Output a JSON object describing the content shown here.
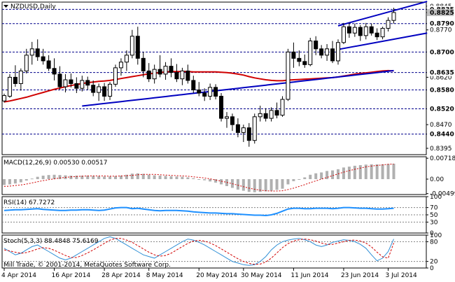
{
  "colors": {
    "background": "#ffffff",
    "frame": "#000000",
    "candle": "#000000",
    "sma_fast": "#d00000",
    "sma_slow": "#0000c0",
    "channel": "#0000c0",
    "level_line": "#00008b",
    "last_price_label_bg": "#c0c0c0",
    "macd_hist": "#b0b0b0",
    "macd_signal": "#d00000",
    "rsi_line": "#1e90ff",
    "stoch_main": "#2f8fd6",
    "stoch_signal": "#d00000",
    "osc_level": "#808080"
  },
  "chart_data": [
    {
      "type": "candlestick",
      "title": "NZDUSD,Daily",
      "ylim": [
        0.8375,
        0.8858
      ],
      "y_ticks": [
        "0.8845",
        "0.8835",
        "0.8825",
        "0.8790",
        "0.8770",
        "0.8700",
        "0.8635",
        "0.8620",
        "0.8580",
        "0.8520",
        "0.8470",
        "0.8440",
        "0.8395"
      ],
      "level_lines": [
        0.8835,
        0.879,
        0.87,
        0.8635,
        0.858,
        0.852,
        0.844
      ],
      "level_labels": [
        "0.8835",
        "0.8790",
        "0.8700",
        "0.8635",
        "0.8580",
        "0.8520",
        "0.8440"
      ],
      "last_price": "0.8825",
      "x_labels": [
        "4 Apr 2014",
        "16 Apr 2014",
        "28 Apr 2014",
        "8 May 2014",
        "20 May 2014",
        "30 May 2014",
        "11 Jun 2014",
        "23 Jun 2014",
        "3 Jul 2014"
      ],
      "x_label_bar_index": [
        0,
        9,
        18,
        26,
        35,
        43,
        52,
        61,
        69
      ],
      "ohlc": [
        [
          0.8545,
          0.8568,
          0.854,
          0.8562
        ],
        [
          0.856,
          0.863,
          0.8555,
          0.862
        ],
        [
          0.862,
          0.8658,
          0.859,
          0.86
        ],
        [
          0.86,
          0.8648,
          0.8578,
          0.864
        ],
        [
          0.864,
          0.871,
          0.8632,
          0.869
        ],
        [
          0.869,
          0.8732,
          0.866,
          0.871
        ],
        [
          0.871,
          0.874,
          0.8672,
          0.8685
        ],
        [
          0.8685,
          0.871,
          0.866,
          0.8672
        ],
        [
          0.8672,
          0.869,
          0.864,
          0.8648
        ],
        [
          0.8648,
          0.868,
          0.861,
          0.863
        ],
        [
          0.863,
          0.8655,
          0.858,
          0.859
        ],
        [
          0.859,
          0.863,
          0.8572,
          0.8612
        ],
        [
          0.8612,
          0.8632,
          0.8588,
          0.86
        ],
        [
          0.86,
          0.862,
          0.857,
          0.8585
        ],
        [
          0.8585,
          0.8625,
          0.8575,
          0.861
        ],
        [
          0.861,
          0.8622,
          0.858,
          0.8595
        ],
        [
          0.8595,
          0.861,
          0.856,
          0.8572
        ],
        [
          0.8572,
          0.86,
          0.8545,
          0.859
        ],
        [
          0.859,
          0.8602,
          0.8545,
          0.856
        ],
        [
          0.856,
          0.8605,
          0.8548,
          0.8598
        ],
        [
          0.8598,
          0.866,
          0.859,
          0.865
        ],
        [
          0.865,
          0.868,
          0.8625,
          0.8668
        ],
        [
          0.8668,
          0.8705,
          0.864,
          0.869
        ],
        [
          0.869,
          0.877,
          0.868,
          0.875
        ],
        [
          0.875,
          0.878,
          0.866,
          0.868
        ],
        [
          0.868,
          0.87,
          0.862,
          0.864
        ],
        [
          0.864,
          0.8665,
          0.8605,
          0.8615
        ],
        [
          0.8615,
          0.866,
          0.86,
          0.8645
        ],
        [
          0.8645,
          0.869,
          0.862,
          0.863
        ],
        [
          0.863,
          0.8668,
          0.8612,
          0.8655
        ],
        [
          0.8655,
          0.868,
          0.862,
          0.8635
        ],
        [
          0.8635,
          0.8662,
          0.8605,
          0.8615
        ],
        [
          0.8615,
          0.865,
          0.8595,
          0.864
        ],
        [
          0.864,
          0.866,
          0.86,
          0.861
        ],
        [
          0.861,
          0.8625,
          0.857,
          0.858
        ],
        [
          0.858,
          0.8605,
          0.856,
          0.857
        ],
        [
          0.857,
          0.8585,
          0.8545,
          0.856
        ],
        [
          0.856,
          0.86,
          0.8548,
          0.8588
        ],
        [
          0.8588,
          0.8598,
          0.855,
          0.856
        ],
        [
          0.856,
          0.857,
          0.848,
          0.849
        ],
        [
          0.849,
          0.851,
          0.846,
          0.8495
        ],
        [
          0.8495,
          0.8505,
          0.845,
          0.847
        ],
        [
          0.847,
          0.849,
          0.843,
          0.8445
        ],
        [
          0.8445,
          0.847,
          0.8415,
          0.846
        ],
        [
          0.846,
          0.8475,
          0.84,
          0.842
        ],
        [
          0.842,
          0.8505,
          0.841,
          0.8495
        ],
        [
          0.8495,
          0.853,
          0.848,
          0.8505
        ],
        [
          0.8505,
          0.8522,
          0.848,
          0.849
        ],
        [
          0.849,
          0.8525,
          0.848,
          0.8515
        ],
        [
          0.8515,
          0.854,
          0.849,
          0.85
        ],
        [
          0.85,
          0.856,
          0.8495,
          0.855
        ],
        [
          0.855,
          0.871,
          0.8545,
          0.87
        ],
        [
          0.87,
          0.873,
          0.865,
          0.868
        ],
        [
          0.868,
          0.8705,
          0.8655,
          0.867
        ],
        [
          0.867,
          0.8692,
          0.865,
          0.866
        ],
        [
          0.866,
          0.8745,
          0.8655,
          0.8735
        ],
        [
          0.8735,
          0.875,
          0.869,
          0.871
        ],
        [
          0.871,
          0.8722,
          0.868,
          0.869
        ],
        [
          0.869,
          0.8725,
          0.8672,
          0.871
        ],
        [
          0.871,
          0.8735,
          0.8665,
          0.8672
        ],
        [
          0.8672,
          0.874,
          0.866,
          0.873
        ],
        [
          0.873,
          0.8792,
          0.8725,
          0.878
        ],
        [
          0.878,
          0.8792,
          0.8745,
          0.876
        ],
        [
          0.876,
          0.879,
          0.8748,
          0.8778
        ],
        [
          0.8778,
          0.8785,
          0.8735,
          0.8752
        ],
        [
          0.8752,
          0.8792,
          0.874,
          0.878
        ],
        [
          0.878,
          0.879,
          0.8752,
          0.876
        ],
        [
          0.876,
          0.8775,
          0.8738,
          0.8748
        ],
        [
          0.8748,
          0.878,
          0.874,
          0.8775
        ],
        [
          0.8775,
          0.881,
          0.8765,
          0.88
        ],
        [
          0.88,
          0.884,
          0.879,
          0.8825
        ]
      ],
      "sma_fast": [
        0.8542,
        0.8545,
        0.8549,
        0.8553,
        0.8557,
        0.8562,
        0.8567,
        0.8572,
        0.8577,
        0.8582,
        0.8586,
        0.859,
        0.8594,
        0.8597,
        0.86,
        0.8603,
        0.8605,
        0.8607,
        0.8608,
        0.861,
        0.8613,
        0.8616,
        0.8619,
        0.8622,
        0.8625,
        0.8628,
        0.8631,
        0.8633,
        0.8635,
        0.8637,
        0.8638,
        0.8638,
        0.8638,
        0.8638,
        0.8637,
        0.8637,
        0.8637,
        0.8637,
        0.8637,
        0.8636,
        0.8635,
        0.8633,
        0.863,
        0.8627,
        0.8622,
        0.8618,
        0.8615,
        0.8612,
        0.861,
        0.8609,
        0.8609,
        0.8611,
        0.8612,
        0.8613,
        0.8614,
        0.8615,
        0.8616,
        0.8617,
        0.8618,
        0.8619,
        0.8621,
        0.8624,
        0.8627,
        0.863,
        0.8632,
        0.8634,
        0.8636,
        0.8638,
        0.864,
        0.8641,
        0.864
      ],
      "sma_slow_visible_from_bar": 14,
      "sma_slow": [
        0.85,
        0.8502,
        0.8505,
        0.8507,
        0.8509,
        0.8511,
        0.8513,
        0.8515,
        0.8517,
        0.8519,
        0.8521,
        0.8523,
        0.8525,
        0.8527,
        0.8529,
        0.8531,
        0.8533,
        0.8535,
        0.8537,
        0.8539,
        0.8541,
        0.8543,
        0.8545,
        0.8547,
        0.8549,
        0.8551,
        0.8553,
        0.8555,
        0.8557,
        0.8559,
        0.8561,
        0.8563,
        0.8565,
        0.8567,
        0.8569,
        0.8571,
        0.8573,
        0.8575,
        0.8577,
        0.8579,
        0.8581,
        0.8583,
        0.8585,
        0.8587,
        0.8589,
        0.8591,
        0.8593,
        0.8595,
        0.8597,
        0.8599,
        0.8601,
        0.8603,
        0.8605,
        0.8607,
        0.8609,
        0.8611,
        0.8613,
        0.8615,
        0.8617,
        0.8619,
        0.8621,
        0.8623,
        0.8625,
        0.8627,
        0.8629,
        0.8631,
        0.8633,
        0.8635,
        0.8637,
        0.8639,
        0.8641
      ],
      "channel": [
        {
          "from_bar": 60,
          "from_price": 0.8783,
          "to_bar": 76,
          "to_price": 0.886
        },
        {
          "from_bar": 60,
          "from_price": 0.8708,
          "to_bar": 76,
          "to_price": 0.876
        }
      ]
    },
    {
      "type": "bar",
      "title": "MACD(12,26,9) 0.00530 0.00517",
      "ylim": [
        -0.0053,
        0.0077
      ],
      "y_ticks": [
        "0.00718",
        "0.00",
        "-0.00499"
      ],
      "histogram": [
        -0.002,
        -0.0018,
        -0.0015,
        -0.0011,
        -0.0005,
        0.0002,
        0.0008,
        0.0012,
        0.0014,
        0.0015,
        0.0014,
        0.0013,
        0.0012,
        0.0012,
        0.0012,
        0.0012,
        0.0011,
        0.001,
        0.0009,
        0.0009,
        0.001,
        0.0012,
        0.0015,
        0.0019,
        0.002,
        0.0018,
        0.0015,
        0.0013,
        0.0012,
        0.0011,
        0.001,
        0.0009,
        0.0008,
        0.0006,
        0.0003,
        0.0,
        -0.0004,
        -0.0008,
        -0.0012,
        -0.0018,
        -0.0024,
        -0.003,
        -0.0036,
        -0.004,
        -0.0044,
        -0.0045,
        -0.0044,
        -0.0042,
        -0.004,
        -0.0037,
        -0.0033,
        -0.0018,
        -0.0007,
        0.0,
        0.0006,
        0.0015,
        0.002,
        0.0023,
        0.0028,
        0.003,
        0.0034,
        0.004,
        0.0043,
        0.0046,
        0.0048,
        0.005,
        0.0051,
        0.0051,
        0.0051,
        0.0052,
        0.0053
      ],
      "signal": [
        -0.0025,
        -0.0024,
        -0.0022,
        -0.002,
        -0.0017,
        -0.0013,
        -0.0009,
        -0.0005,
        -0.0002,
        0.0001,
        0.0004,
        0.0006,
        0.0008,
        0.0009,
        0.001,
        0.0011,
        0.0011,
        0.0011,
        0.0011,
        0.001,
        0.001,
        0.0011,
        0.0012,
        0.0013,
        0.0015,
        0.0016,
        0.0016,
        0.0016,
        0.0015,
        0.0014,
        0.0013,
        0.0012,
        0.0011,
        0.001,
        0.0008,
        0.0006,
        0.0004,
        0.0001,
        -0.0003,
        -0.0007,
        -0.0011,
        -0.0016,
        -0.0021,
        -0.0026,
        -0.0031,
        -0.0035,
        -0.0038,
        -0.004,
        -0.0041,
        -0.0041,
        -0.004,
        -0.0036,
        -0.0031,
        -0.0025,
        -0.0019,
        -0.0012,
        -0.0006,
        0.0,
        0.0006,
        0.0012,
        0.0018,
        0.0024,
        0.0029,
        0.0034,
        0.0038,
        0.0042,
        0.0045,
        0.0047,
        0.0049,
        0.0051,
        0.0052
      ]
    },
    {
      "type": "line",
      "title": "RSI(14) 67.7272",
      "ylim": [
        0,
        100
      ],
      "y_ticks": [
        "100",
        "70",
        "50",
        "30",
        "0"
      ],
      "levels": [
        70,
        50,
        30
      ],
      "values": [
        62,
        63,
        64,
        64,
        65,
        66,
        67,
        65,
        64,
        63,
        62,
        62,
        63,
        63,
        64,
        64,
        63,
        62,
        63,
        66,
        69,
        70,
        70,
        67,
        68,
        66,
        64,
        62,
        61,
        62,
        62,
        62,
        61,
        60,
        58,
        57,
        56,
        55,
        55,
        54,
        53,
        53,
        52,
        51,
        50,
        49,
        49,
        48,
        50,
        54,
        60,
        66,
        68,
        68,
        67,
        67,
        68,
        68,
        68,
        67,
        68,
        70,
        70,
        69,
        68,
        68,
        67,
        66,
        66,
        67,
        68
      ]
    },
    {
      "type": "line",
      "title": "Stoch(5,3,3) 88.4848 75.6169",
      "ylim": [
        0,
        100
      ],
      "y_ticks": [
        "100",
        "80",
        "20",
        "0"
      ],
      "levels": [
        80,
        20
      ],
      "main": [
        60,
        50,
        40,
        45,
        55,
        65,
        70,
        60,
        50,
        40,
        30,
        25,
        30,
        40,
        50,
        60,
        70,
        80,
        90,
        95,
        90,
        80,
        70,
        60,
        50,
        40,
        35,
        30,
        40,
        50,
        60,
        70,
        80,
        88,
        85,
        78,
        70,
        60,
        50,
        40,
        30,
        20,
        15,
        10,
        8,
        10,
        20,
        35,
        55,
        70,
        80,
        85,
        88,
        90,
        86,
        80,
        70,
        65,
        70,
        78,
        82,
        86,
        84,
        80,
        72,
        60,
        40,
        22,
        30,
        50,
        88
      ],
      "signal": [
        55,
        52,
        48,
        45,
        47,
        52,
        58,
        62,
        60,
        54,
        46,
        38,
        32,
        32,
        38,
        46,
        55,
        65,
        75,
        85,
        90,
        90,
        85,
        78,
        68,
        58,
        48,
        40,
        36,
        38,
        45,
        55,
        65,
        75,
        82,
        84,
        82,
        76,
        68,
        58,
        48,
        38,
        28,
        20,
        14,
        11,
        12,
        18,
        30,
        46,
        62,
        74,
        82,
        86,
        88,
        86,
        82,
        76,
        72,
        72,
        76,
        80,
        84,
        85,
        82,
        76,
        64,
        48,
        34,
        30,
        76
      ]
    }
  ],
  "footer": {
    "copyright": "Mill Trade, © 2001-2014, MetaQuotes Software Corp."
  }
}
